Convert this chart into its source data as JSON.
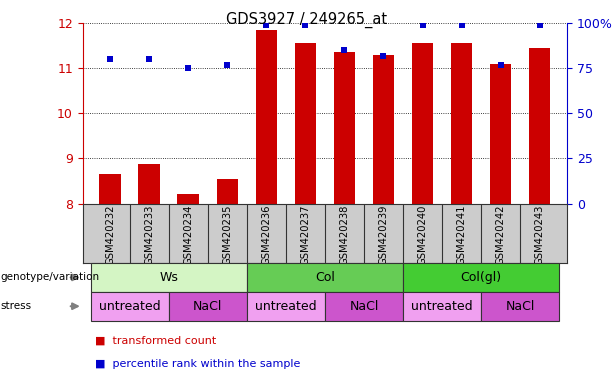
{
  "title": "GDS3927 / 249265_at",
  "samples": [
    "GSM420232",
    "GSM420233",
    "GSM420234",
    "GSM420235",
    "GSM420236",
    "GSM420237",
    "GSM420238",
    "GSM420239",
    "GSM420240",
    "GSM420241",
    "GSM420242",
    "GSM420243"
  ],
  "bar_values": [
    8.65,
    8.88,
    8.22,
    8.55,
    11.85,
    11.55,
    11.35,
    11.3,
    11.55,
    11.55,
    11.1,
    11.45
  ],
  "percentile_values": [
    80,
    80,
    75,
    77,
    99,
    99,
    85,
    82,
    99,
    99,
    77,
    99
  ],
  "ylim": [
    8.0,
    12.0
  ],
  "yticks": [
    8,
    9,
    10,
    11,
    12
  ],
  "y2ticks": [
    0,
    25,
    50,
    75,
    100
  ],
  "y2labels": [
    "0",
    "25",
    "50",
    "75",
    "100%"
  ],
  "bar_color": "#cc0000",
  "dot_color": "#0000cc",
  "dot_size": 22,
  "genotype_groups": [
    {
      "label": "Ws",
      "start": 0,
      "end": 3,
      "color": "#d4f5c4"
    },
    {
      "label": "Col",
      "start": 4,
      "end": 7,
      "color": "#66cc55"
    },
    {
      "label": "Col(gl)",
      "start": 8,
      "end": 11,
      "color": "#44cc33"
    }
  ],
  "stress_groups": [
    {
      "label": "untreated",
      "start": 0,
      "end": 1,
      "color": "#f0a0f0"
    },
    {
      "label": "NaCl",
      "start": 2,
      "end": 3,
      "color": "#cc55cc"
    },
    {
      "label": "untreated",
      "start": 4,
      "end": 5,
      "color": "#f0a0f0"
    },
    {
      "label": "NaCl",
      "start": 6,
      "end": 7,
      "color": "#cc55cc"
    },
    {
      "label": "untreated",
      "start": 8,
      "end": 9,
      "color": "#f0a0f0"
    },
    {
      "label": "NaCl",
      "start": 10,
      "end": 11,
      "color": "#cc55cc"
    }
  ],
  "bar_width": 0.55,
  "tick_label_color": "#cc0000",
  "tick2_label_color": "#0000cc",
  "sample_bg_color": "#cccccc",
  "border_color": "#333333"
}
